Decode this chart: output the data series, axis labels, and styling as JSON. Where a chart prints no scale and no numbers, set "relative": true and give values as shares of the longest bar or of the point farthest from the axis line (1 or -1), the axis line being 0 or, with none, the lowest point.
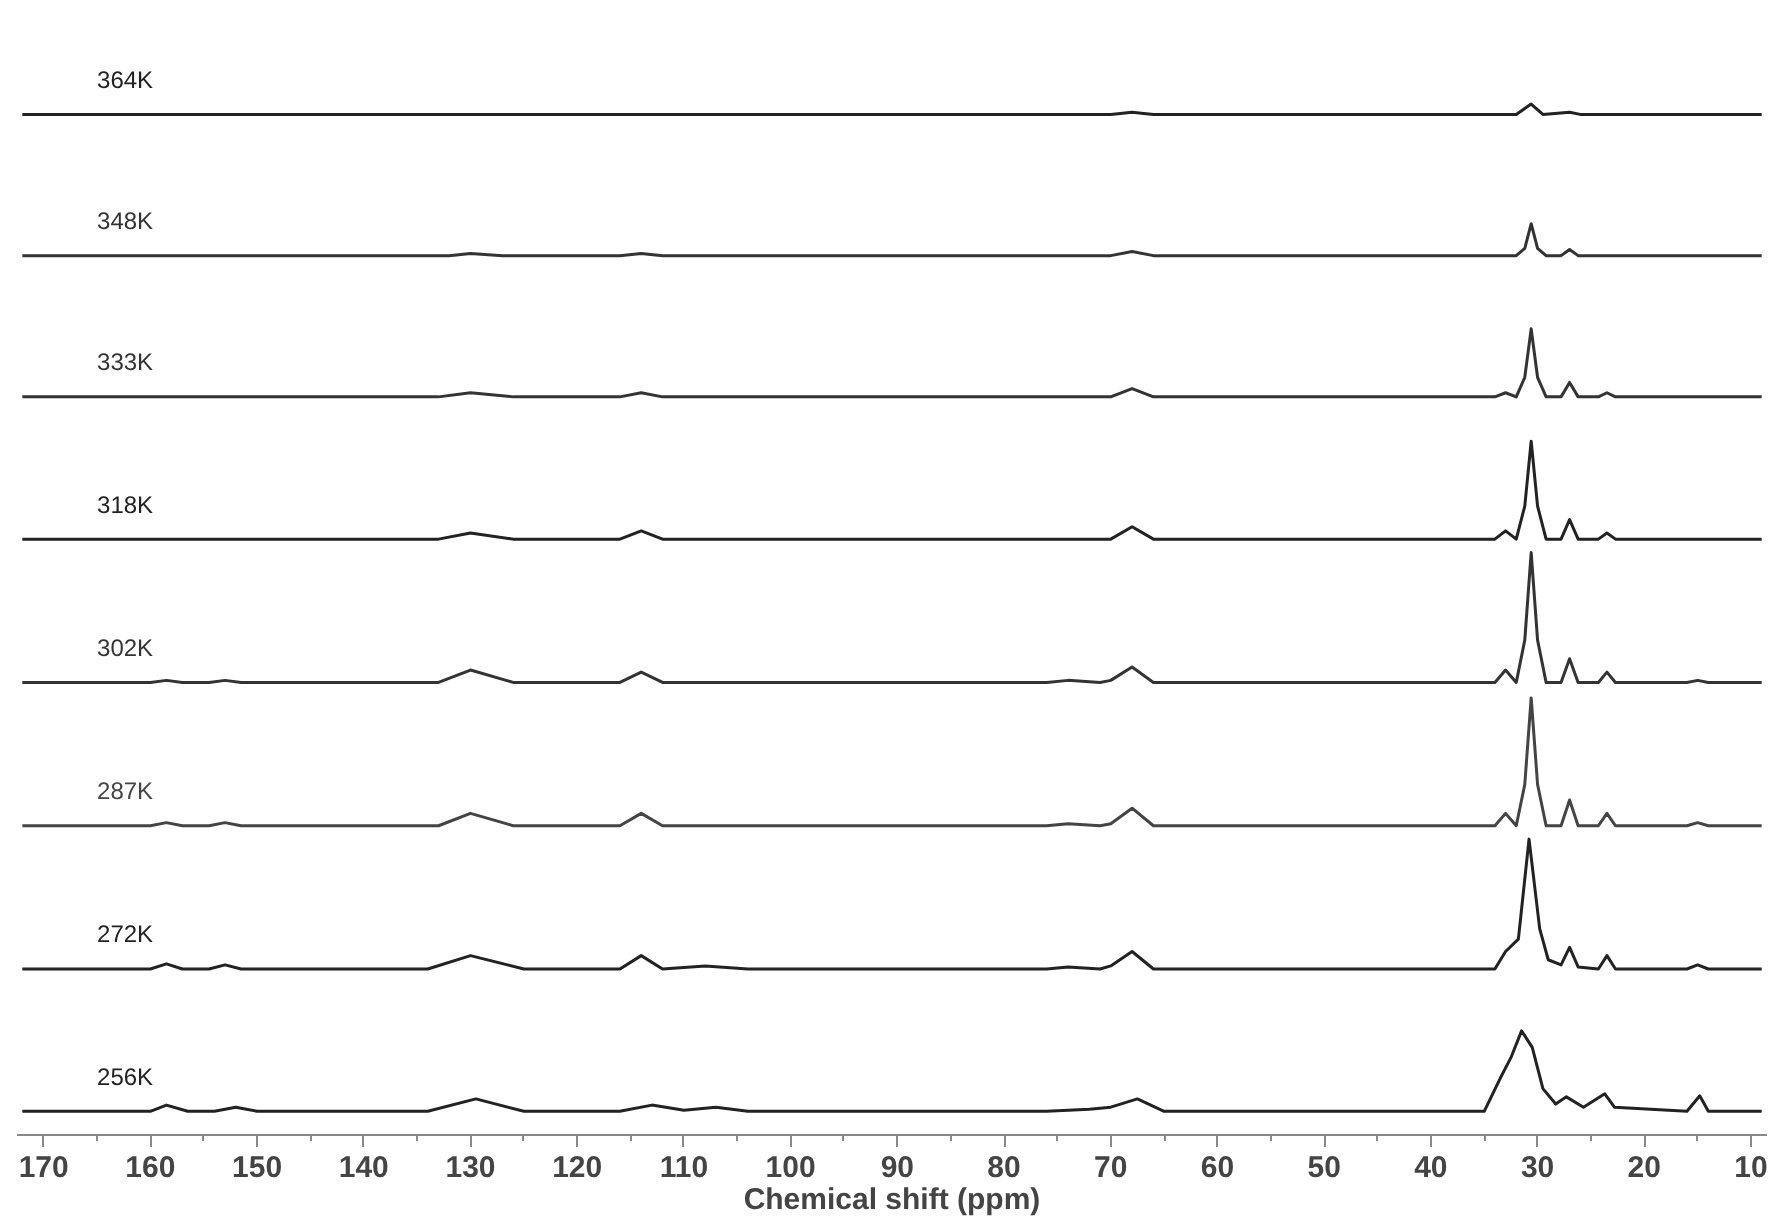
{
  "chart_data": {
    "type": "line",
    "relative": true,
    "xlabel": "Chemical shift (ppm)",
    "xlim": [
      172.5,
      8.5
    ],
    "xticks": [
      170,
      {
        "value": 165,
        "label": null
      },
      160,
      {
        "value": 155,
        "label": null
      },
      150,
      {
        "value": 145,
        "label": null
      },
      140,
      {
        "value": 135,
        "label": null
      },
      130,
      {
        "value": 125,
        "label": null
      },
      120,
      {
        "value": 115,
        "label": null
      },
      110,
      {
        "value": 105,
        "label": null
      },
      100,
      {
        "value": 95,
        "label": null
      },
      90,
      {
        "value": 85,
        "label": null
      },
      80,
      {
        "value": 75,
        "label": null
      },
      70,
      {
        "value": 65,
        "label": null
      },
      60,
      {
        "value": 55,
        "label": null
      },
      50,
      {
        "value": 45,
        "label": null
      },
      40,
      {
        "value": 35,
        "label": null
      },
      30,
      {
        "value": 25,
        "label": null
      },
      20,
      {
        "value": 15,
        "label": null
      },
      10
    ],
    "grid": false,
    "marker": "none",
    "line_style": "solid",
    "series": [
      {
        "name": "364K",
        "color": "#222222",
        "x": [
          172,
          70,
          68,
          66,
          32,
          30.6,
          29.5,
          27,
          26,
          9
        ],
        "values": [
          0.99,
          0.99,
          0.992,
          0.99,
          0.99,
          1.0,
          0.99,
          0.992,
          0.99,
          0.99
        ]
      },
      {
        "name": "348K",
        "color": "#333333",
        "x": [
          172,
          132,
          130,
          127,
          116,
          114,
          112,
          70,
          68,
          66,
          32,
          31.2,
          30.6,
          30.0,
          29.2,
          27.8,
          27,
          26.2,
          9
        ],
        "values": [
          0.853,
          0.853,
          0.855,
          0.853,
          0.853,
          0.855,
          0.853,
          0.853,
          0.857,
          0.853,
          0.853,
          0.86,
          0.884,
          0.86,
          0.853,
          0.853,
          0.859,
          0.853,
          0.853
        ]
      },
      {
        "name": "333K",
        "color": "#333333",
        "x": [
          172,
          133,
          130,
          126,
          116,
          114,
          112,
          70,
          68,
          66,
          34,
          33,
          32,
          31.2,
          30.6,
          30,
          29.2,
          27.8,
          27,
          26.2,
          24.3,
          23.5,
          22.7,
          9
        ],
        "values": [
          0.716,
          0.716,
          0.72,
          0.716,
          0.716,
          0.72,
          0.716,
          0.716,
          0.724,
          0.716,
          0.716,
          0.72,
          0.716,
          0.735,
          0.782,
          0.735,
          0.716,
          0.716,
          0.73,
          0.716,
          0.716,
          0.72,
          0.716,
          0.716
        ]
      },
      {
        "name": "318K",
        "color": "#222222",
        "x": [
          172,
          133,
          130,
          126,
          116,
          114,
          112,
          70,
          68,
          66,
          34,
          33,
          32,
          31.2,
          30.6,
          30,
          29.2,
          27.8,
          27,
          26.2,
          24.3,
          23.5,
          22.7,
          9
        ],
        "values": [
          0.578,
          0.578,
          0.584,
          0.578,
          0.578,
          0.586,
          0.578,
          0.578,
          0.59,
          0.578,
          0.578,
          0.586,
          0.578,
          0.61,
          0.673,
          0.61,
          0.578,
          0.578,
          0.597,
          0.578,
          0.578,
          0.584,
          0.578,
          0.578
        ]
      },
      {
        "name": "302K",
        "color": "#333333",
        "x": [
          172,
          160,
          158.5,
          157,
          154.5,
          153,
          151.5,
          133,
          130,
          126,
          116,
          114,
          112,
          76,
          74,
          71,
          70,
          68,
          66,
          34,
          33,
          32,
          31.2,
          30.6,
          30,
          29.2,
          27.8,
          27,
          26.2,
          24.3,
          23.5,
          22.7,
          16,
          15,
          14,
          9
        ],
        "values": [
          0.439,
          0.439,
          0.441,
          0.439,
          0.439,
          0.441,
          0.439,
          0.439,
          0.451,
          0.439,
          0.439,
          0.449,
          0.439,
          0.439,
          0.441,
          0.439,
          0.441,
          0.454,
          0.439,
          0.439,
          0.451,
          0.439,
          0.48,
          0.565,
          0.48,
          0.439,
          0.439,
          0.462,
          0.439,
          0.439,
          0.449,
          0.439,
          0.439,
          0.441,
          0.439,
          0.439
        ]
      },
      {
        "name": "287K",
        "color": "#444444",
        "x": [
          172,
          160,
          158.5,
          157,
          154.5,
          153,
          151.5,
          133,
          130,
          126,
          116,
          114,
          112,
          76,
          74,
          71,
          70,
          68,
          66,
          34,
          33,
          32,
          31.2,
          30.6,
          30,
          29.2,
          27.8,
          27,
          26.2,
          24.3,
          23.5,
          22.7,
          16,
          15,
          14,
          9
        ],
        "values": [
          0.3,
          0.3,
          0.303,
          0.3,
          0.3,
          0.303,
          0.3,
          0.3,
          0.312,
          0.3,
          0.3,
          0.312,
          0.3,
          0.3,
          0.302,
          0.3,
          0.302,
          0.317,
          0.3,
          0.3,
          0.312,
          0.3,
          0.34,
          0.424,
          0.34,
          0.3,
          0.3,
          0.325,
          0.3,
          0.3,
          0.312,
          0.3,
          0.3,
          0.303,
          0.3,
          0.3
        ]
      },
      {
        "name": "272K",
        "color": "#222222",
        "x": [
          172,
          160,
          158.5,
          157,
          154.5,
          153,
          151.5,
          134,
          130,
          125,
          116,
          114,
          112,
          108,
          104,
          76,
          74,
          71,
          70,
          68,
          66,
          34,
          33,
          31.8,
          30.8,
          29.8,
          29,
          27.8,
          27,
          26.2,
          24.3,
          23.5,
          22.7,
          16,
          15,
          14,
          9
        ],
        "values": [
          0.161,
          0.161,
          0.166,
          0.161,
          0.161,
          0.165,
          0.161,
          0.161,
          0.174,
          0.161,
          0.161,
          0.174,
          0.161,
          0.164,
          0.161,
          0.161,
          0.163,
          0.161,
          0.164,
          0.178,
          0.161,
          0.161,
          0.178,
          0.19,
          0.287,
          0.2,
          0.17,
          0.165,
          0.182,
          0.163,
          0.161,
          0.174,
          0.161,
          0.161,
          0.165,
          0.161,
          0.161
        ]
      },
      {
        "name": "256K",
        "color": "#222222",
        "x": [
          172,
          160,
          158.5,
          156.5,
          154,
          152,
          150,
          134,
          129.5,
          125,
          116,
          113,
          110,
          107,
          104,
          76,
          72,
          70,
          67.5,
          65,
          35,
          33.5,
          32.5,
          31.5,
          30.5,
          29.5,
          28.3,
          27.3,
          25.7,
          23.7,
          22.8,
          16,
          14.8,
          14,
          9
        ],
        "values": [
          0.023,
          0.023,
          0.029,
          0.023,
          0.023,
          0.027,
          0.023,
          0.023,
          0.035,
          0.023,
          0.023,
          0.029,
          0.024,
          0.027,
          0.023,
          0.023,
          0.025,
          0.027,
          0.035,
          0.023,
          0.023,
          0.055,
          0.075,
          0.101,
          0.085,
          0.045,
          0.03,
          0.037,
          0.027,
          0.04,
          0.027,
          0.023,
          0.038,
          0.023,
          0.023
        ]
      }
    ]
  }
}
